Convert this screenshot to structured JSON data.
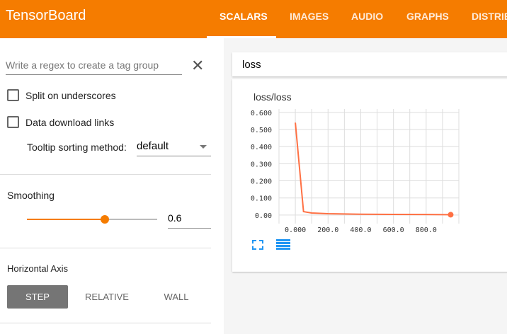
{
  "header": {
    "title": "TensorBoard",
    "tabs": [
      "SCALARS",
      "IMAGES",
      "AUDIO",
      "GRAPHS",
      "DISTRIB"
    ],
    "active_tab": "SCALARS",
    "color": "#f57c00"
  },
  "sidebar": {
    "regex_placeholder": "Write a regex to create a tag group",
    "split_label": "Split on underscores",
    "split_checked": false,
    "download_label": "Data download links",
    "download_checked": false,
    "tooltip_label": "Tooltip sorting method:",
    "tooltip_value": "default",
    "smoothing_label": "Smoothing",
    "smoothing_value": "0.6",
    "haxis_label": "Horizontal Axis",
    "haxis_options": [
      "STEP",
      "RELATIVE",
      "WALL"
    ],
    "haxis_selected": "STEP"
  },
  "main": {
    "group_name": "loss",
    "card_title": "loss/loss"
  },
  "chart_data": {
    "type": "line",
    "title": "loss/loss",
    "xlim": [
      -100,
      1000
    ],
    "ylim": [
      -0.05,
      0.62
    ],
    "x_ticks": [
      "0.000",
      "200.0",
      "400.0",
      "600.0",
      "800.0"
    ],
    "x_tick_values": [
      0,
      200,
      400,
      600,
      800
    ],
    "y_ticks": [
      "0.600",
      "0.500",
      "0.400",
      "0.300",
      "0.200",
      "0.100",
      "0.00"
    ],
    "y_tick_values": [
      0.6,
      0.5,
      0.4,
      0.3,
      0.2,
      0.1,
      0
    ],
    "grid": true,
    "color": "#ff7043",
    "series": [
      {
        "x": [
          0,
          50,
          100,
          200,
          400,
          600,
          800,
          950
        ],
        "y": [
          0.54,
          0.02,
          0.012,
          0.008,
          0.005,
          0.004,
          0.003,
          0.002
        ]
      }
    ]
  }
}
